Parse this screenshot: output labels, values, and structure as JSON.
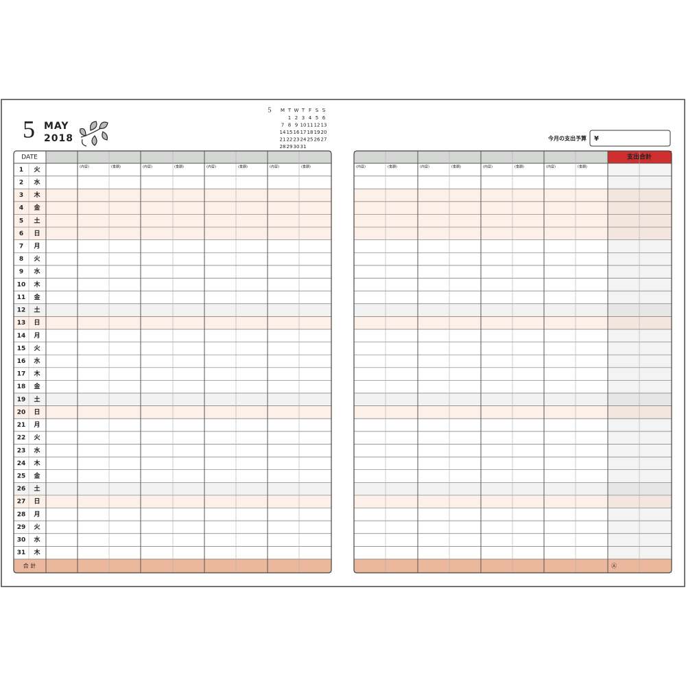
{
  "header": {
    "month_number": "5",
    "month_name": "MAY",
    "year": "2018"
  },
  "mini_calendar": {
    "month": "5",
    "weekdays": [
      "M",
      "T",
      "W",
      "T",
      "F",
      "S",
      "S"
    ],
    "weeks": [
      [
        null,
        "1",
        "2",
        "3",
        "4",
        "5",
        "6"
      ],
      [
        "7",
        "8",
        "9",
        "10",
        "11",
        "12",
        "13"
      ],
      [
        "14",
        "15",
        "16",
        "17",
        "18",
        "19",
        "20"
      ],
      [
        "21",
        "22",
        "23",
        "24",
        "25",
        "26",
        "27"
      ],
      [
        "28",
        "29",
        "30",
        "31",
        null,
        null,
        null
      ]
    ]
  },
  "budget": {
    "label": "今月の支出予算",
    "currency": "¥"
  },
  "table": {
    "date_header": "DATE",
    "column_labels": [
      "(内容)",
      "(金額)"
    ],
    "total_header": "支出合計",
    "total_label": "合 計",
    "total_mark": "Ⓐ",
    "days": [
      {
        "day": "1",
        "weekday": "火",
        "style": "weekday"
      },
      {
        "day": "2",
        "weekday": "水",
        "style": "weekday"
      },
      {
        "day": "3",
        "weekday": "木",
        "style": "holiday"
      },
      {
        "day": "4",
        "weekday": "金",
        "style": "holiday"
      },
      {
        "day": "5",
        "weekday": "土",
        "style": "holiday"
      },
      {
        "day": "6",
        "weekday": "日",
        "style": "holiday"
      },
      {
        "day": "7",
        "weekday": "月",
        "style": "weekday"
      },
      {
        "day": "8",
        "weekday": "火",
        "style": "weekday"
      },
      {
        "day": "9",
        "weekday": "水",
        "style": "weekday"
      },
      {
        "day": "10",
        "weekday": "木",
        "style": "weekday"
      },
      {
        "day": "11",
        "weekday": "金",
        "style": "weekday"
      },
      {
        "day": "12",
        "weekday": "土",
        "style": "saturday"
      },
      {
        "day": "13",
        "weekday": "日",
        "style": "holiday"
      },
      {
        "day": "14",
        "weekday": "月",
        "style": "weekday"
      },
      {
        "day": "15",
        "weekday": "火",
        "style": "weekday"
      },
      {
        "day": "16",
        "weekday": "水",
        "style": "weekday"
      },
      {
        "day": "17",
        "weekday": "木",
        "style": "weekday"
      },
      {
        "day": "18",
        "weekday": "金",
        "style": "weekday"
      },
      {
        "day": "19",
        "weekday": "土",
        "style": "saturday"
      },
      {
        "day": "20",
        "weekday": "日",
        "style": "holiday"
      },
      {
        "day": "21",
        "weekday": "月",
        "style": "weekday"
      },
      {
        "day": "22",
        "weekday": "火",
        "style": "weekday"
      },
      {
        "day": "23",
        "weekday": "水",
        "style": "weekday"
      },
      {
        "day": "24",
        "weekday": "木",
        "style": "weekday"
      },
      {
        "day": "25",
        "weekday": "金",
        "style": "weekday"
      },
      {
        "day": "26",
        "weekday": "土",
        "style": "saturday"
      },
      {
        "day": "27",
        "weekday": "日",
        "style": "holiday"
      },
      {
        "day": "28",
        "weekday": "月",
        "style": "weekday"
      },
      {
        "day": "29",
        "weekday": "火",
        "style": "weekday"
      },
      {
        "day": "30",
        "weekday": "水",
        "style": "weekday"
      },
      {
        "day": "31",
        "weekday": "木",
        "style": "weekday"
      }
    ]
  }
}
